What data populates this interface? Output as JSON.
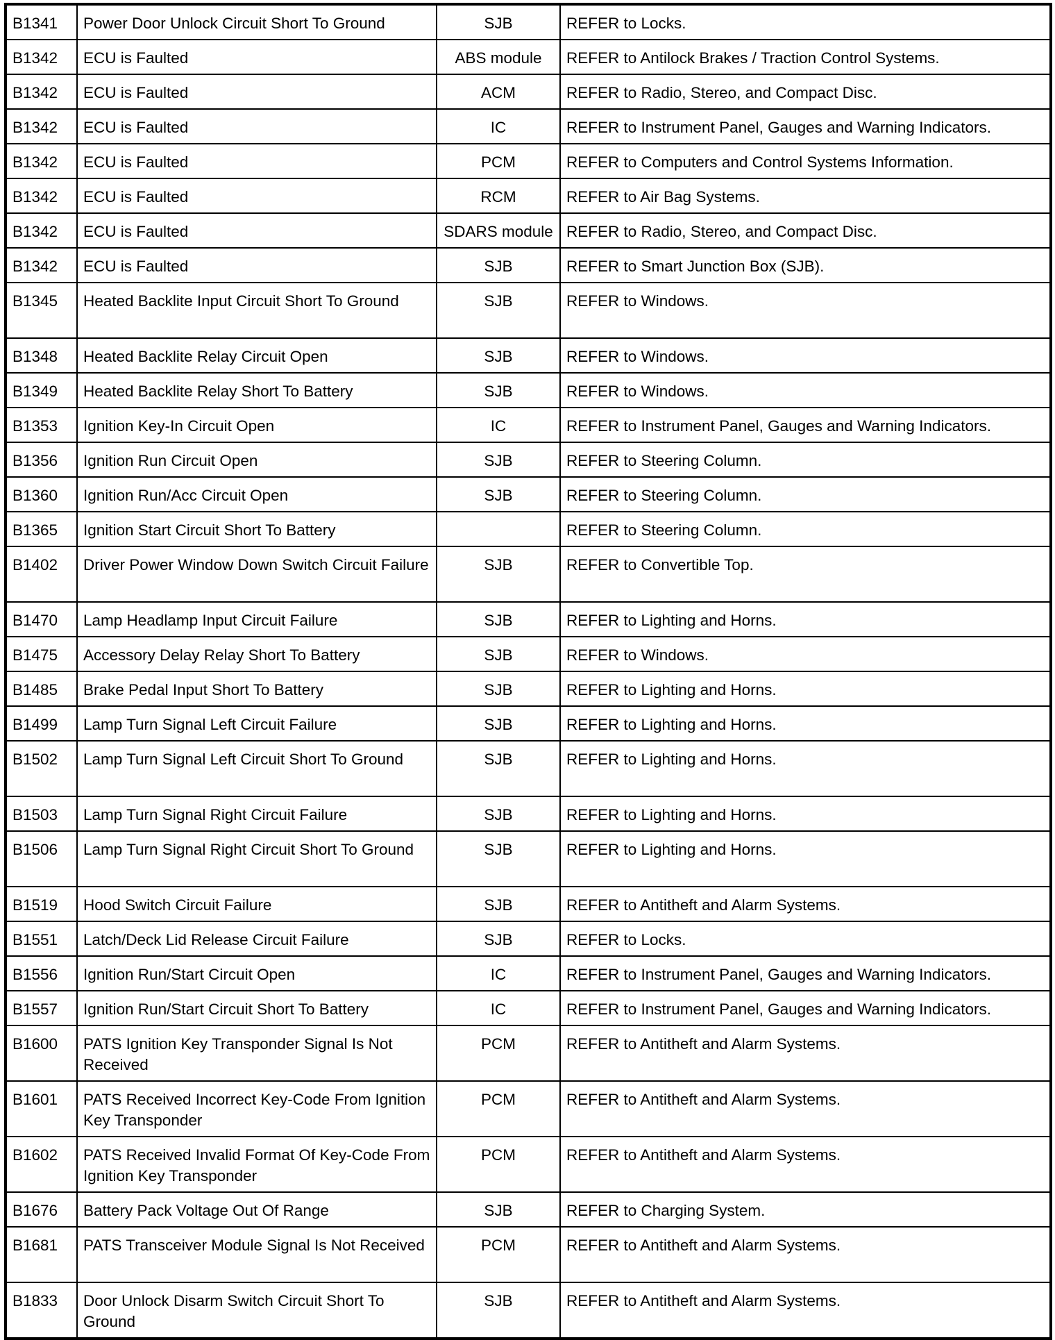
{
  "rows": [
    {
      "code": "B1341",
      "description": "Power Door Unlock Circuit Short To Ground",
      "module": "SJB",
      "action": "REFER to Locks."
    },
    {
      "code": "B1342",
      "description": "ECU is Faulted",
      "module": "ABS module",
      "action": "REFER to Antilock Brakes / Traction Control Systems."
    },
    {
      "code": "B1342",
      "description": "ECU is Faulted",
      "module": "ACM",
      "action": "REFER to Radio, Stereo, and Compact Disc."
    },
    {
      "code": "B1342",
      "description": "ECU is Faulted",
      "module": "IC",
      "action": "REFER to Instrument Panel, Gauges and Warning Indicators."
    },
    {
      "code": "B1342",
      "description": "ECU is Faulted",
      "module": "PCM",
      "action": "REFER to Computers and Control Systems Information."
    },
    {
      "code": "B1342",
      "description": "ECU is Faulted",
      "module": "RCM",
      "action": "REFER to Air Bag Systems."
    },
    {
      "code": "B1342",
      "description": "ECU is Faulted",
      "module": "SDARS module",
      "action": "REFER to Radio, Stereo, and Compact Disc."
    },
    {
      "code": "B1342",
      "description": "ECU is Faulted",
      "module": "SJB",
      "action": "REFER to Smart Junction Box (SJB)."
    },
    {
      "code": "B1345",
      "description": "Heated Backlite Input Circuit Short To Ground",
      "module": "SJB",
      "action": "REFER to Windows."
    },
    {
      "code": "B1348",
      "description": "Heated Backlite Relay Circuit Open",
      "module": "SJB",
      "action": "REFER to Windows."
    },
    {
      "code": "B1349",
      "description": "Heated Backlite Relay Short To Battery",
      "module": "SJB",
      "action": "REFER to Windows."
    },
    {
      "code": "B1353",
      "description": "Ignition Key-In Circuit Open",
      "module": "IC",
      "action": "REFER to Instrument Panel, Gauges and Warning Indicators."
    },
    {
      "code": "B1356",
      "description": "Ignition Run Circuit Open",
      "module": "SJB",
      "action": "REFER to Steering Column."
    },
    {
      "code": "B1360",
      "description": "Ignition Run/Acc Circuit Open",
      "module": "SJB",
      "action": "REFER to Steering Column."
    },
    {
      "code": "B1365",
      "description": "Ignition Start Circuit Short To Battery",
      "module": "",
      "action": "REFER to Steering Column."
    },
    {
      "code": "B1402",
      "description": "Driver Power Window Down Switch Circuit Failure",
      "module": "SJB",
      "action": "REFER to Convertible Top."
    },
    {
      "code": "B1470",
      "description": "Lamp Headlamp Input Circuit Failure",
      "module": "SJB",
      "action": "REFER to Lighting and Horns."
    },
    {
      "code": "B1475",
      "description": "Accessory Delay Relay Short To Battery",
      "module": "SJB",
      "action": "REFER to Windows."
    },
    {
      "code": "B1485",
      "description": "Brake Pedal Input Short To Battery",
      "module": "SJB",
      "action": "REFER to Lighting and Horns."
    },
    {
      "code": "B1499",
      "description": "Lamp Turn Signal Left Circuit Failure",
      "module": "SJB",
      "action": "REFER to Lighting and Horns."
    },
    {
      "code": "B1502",
      "description": "Lamp Turn Signal Left Circuit Short To Ground",
      "module": "SJB",
      "action": "REFER to Lighting and Horns."
    },
    {
      "code": "B1503",
      "description": "Lamp Turn Signal Right Circuit Failure",
      "module": "SJB",
      "action": "REFER to Lighting and Horns."
    },
    {
      "code": "B1506",
      "description": "Lamp Turn Signal Right Circuit Short To Ground",
      "module": "SJB",
      "action": "REFER to Lighting and Horns."
    },
    {
      "code": "B1519",
      "description": "Hood Switch Circuit Failure",
      "module": "SJB",
      "action": "REFER to Antitheft and Alarm Systems."
    },
    {
      "code": "B1551",
      "description": "Latch/Deck Lid Release Circuit Failure",
      "module": "SJB",
      "action": "REFER to Locks."
    },
    {
      "code": "B1556",
      "description": "Ignition Run/Start Circuit Open",
      "module": "IC",
      "action": "REFER to Instrument Panel, Gauges and Warning Indicators."
    },
    {
      "code": "B1557",
      "description": "Ignition Run/Start Circuit Short To Battery",
      "module": "IC",
      "action": "REFER to Instrument Panel, Gauges and Warning Indicators."
    },
    {
      "code": "B1600",
      "description": "PATS Ignition Key Transponder Signal Is Not Received",
      "module": "PCM",
      "action": "REFER to Antitheft and Alarm Systems."
    },
    {
      "code": "B1601",
      "description": "PATS Received Incorrect Key-Code From Ignition Key Transponder",
      "module": "PCM",
      "action": "REFER to Antitheft and Alarm Systems."
    },
    {
      "code": "B1602",
      "description": "PATS Received Invalid Format Of Key-Code From Ignition Key Transponder",
      "module": "PCM",
      "action": "REFER to Antitheft and Alarm Systems."
    },
    {
      "code": "B1676",
      "description": "Battery Pack Voltage Out Of Range",
      "module": "SJB",
      "action": "REFER to Charging System."
    },
    {
      "code": "B1681",
      "description": "PATS Transceiver Module Signal Is Not Received",
      "module": "PCM",
      "action": "REFER to Antitheft and Alarm Systems."
    },
    {
      "code": "B1833",
      "description": "Door Unlock Disarm Switch Circuit Short To Ground",
      "module": "SJB",
      "action": "REFER to Antitheft and Alarm Systems."
    }
  ]
}
